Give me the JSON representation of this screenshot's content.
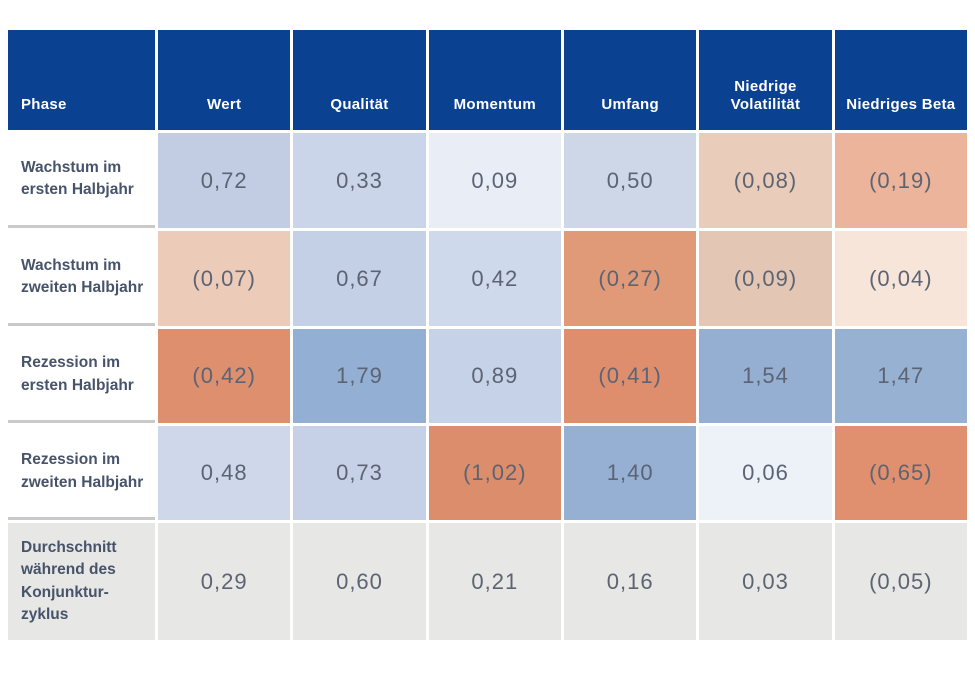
{
  "colors": {
    "header_bg": "#0a4191",
    "header_text": "#ffffff",
    "label_text": "#47536a",
    "value_text": "#5c6474",
    "label_separator": "#c9c9c9",
    "average_row_bg": "#e7e7e5",
    "page_bg": "#ffffff",
    "positive_scale": "blue",
    "negative_scale": "orange"
  },
  "table": {
    "columns": [
      "Phase",
      "Wert",
      "Qualität",
      "Momentum",
      "Umfang",
      "Niedrige Volatilität",
      "Niedriges Beta"
    ],
    "rows": [
      {
        "label": "Wachstum im ersten Halbjahr",
        "label_bg": "#ffffff",
        "values": [
          "0,72",
          "0,33",
          "0,09",
          "0,50",
          "(0,08)",
          "(0,19)"
        ],
        "colors": [
          "#c2cde4",
          "#cbd5e9",
          "#e9edf6",
          "#cdd7e7",
          "#e9ccba",
          "#ecb49b"
        ]
      },
      {
        "label": "Wachstum im zweiten Halbjahr",
        "label_bg": "#ffffff",
        "values": [
          "(0,07)",
          "0,67",
          "0,42",
          "(0,27)",
          "(0,09)",
          "(0,04)"
        ],
        "colors": [
          "#ecccb8",
          "#c4d0e6",
          "#cfd9ec",
          "#e09a77",
          "#e3c6b4",
          "#f7e5da"
        ]
      },
      {
        "label": "Rezession im ersten Halbjahr",
        "label_bg": "#ffffff",
        "values": [
          "(0,42)",
          "1,79",
          "0,89",
          "(0,41)",
          "1,54",
          "1,47"
        ],
        "colors": [
          "#dd8f6e",
          "#93afd3",
          "#c6d2e8",
          "#de8e6c",
          "#94afd1",
          "#97b1d3"
        ]
      },
      {
        "label": "Rezession im zweiten Halbjahr",
        "label_bg": "#ffffff",
        "values": [
          "0,48",
          "0,73",
          "(1,02)",
          "1,40",
          "0,06",
          "(0,65)"
        ],
        "colors": [
          "#cfd8ea",
          "#c6d0e7",
          "#dc8d6c",
          "#95b0d3",
          "#edf1f8",
          "#e0906e"
        ]
      },
      {
        "label": "Durchschnitt während des Konjunktur-zyklus",
        "label_bg": "#e7e7e5",
        "values": [
          "0,29",
          "0,60",
          "0,21",
          "0,16",
          "0,03",
          "(0,05)"
        ],
        "colors": [
          "#e7e7e5",
          "#e7e7e5",
          "#e7e7e5",
          "#e7e7e5",
          "#e7e7e5",
          "#e7e7e5"
        ]
      }
    ]
  },
  "chart_data": {
    "type": "heatmap",
    "title": "",
    "columns": [
      "Wert",
      "Qualität",
      "Momentum",
      "Umfang",
      "Niedrige Volatilität",
      "Niedriges Beta"
    ],
    "row_labels": [
      "Wachstum im ersten Halbjahr",
      "Wachstum im zweiten Halbjahr",
      "Rezession im ersten Halbjahr",
      "Rezession im zweiten Halbjahr",
      "Durchschnitt während des Konjunkturzyklus"
    ],
    "values": [
      [
        0.72,
        0.33,
        0.09,
        0.5,
        -0.08,
        -0.19
      ],
      [
        -0.07,
        0.67,
        0.42,
        -0.27,
        -0.09,
        -0.04
      ],
      [
        -0.42,
        1.79,
        0.89,
        -0.41,
        1.54,
        1.47
      ],
      [
        0.48,
        0.73,
        -1.02,
        1.4,
        0.06,
        -0.65
      ],
      [
        0.29,
        0.6,
        0.21,
        0.16,
        0.03,
        -0.05
      ]
    ],
    "value_format": "negative values shown in parentheses, decimal comma",
    "color_coding": "blue shades = positive, orange shades = negative, gray = average row",
    "legend_position": "none",
    "grid": false
  }
}
